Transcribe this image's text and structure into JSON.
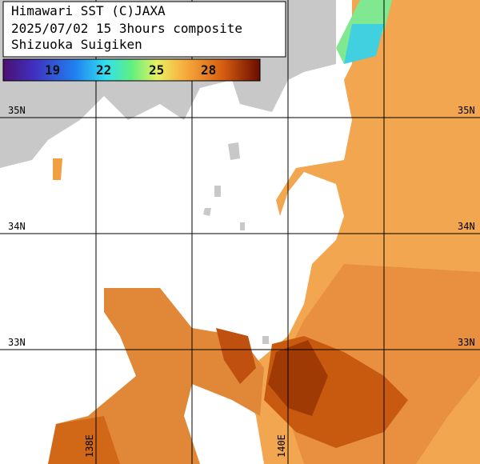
{
  "header": {
    "lines": [
      "Himawari SST (C)JAXA",
      "2025/07/02 15 3hours composite",
      "Shizuoka Suigiken"
    ]
  },
  "colorbar": {
    "labels": [
      "19",
      "22",
      "25",
      "28"
    ]
  },
  "latitudes": [
    "35N",
    "34N",
    "33N"
  ],
  "longitudes": [
    "138E",
    "140E"
  ]
}
